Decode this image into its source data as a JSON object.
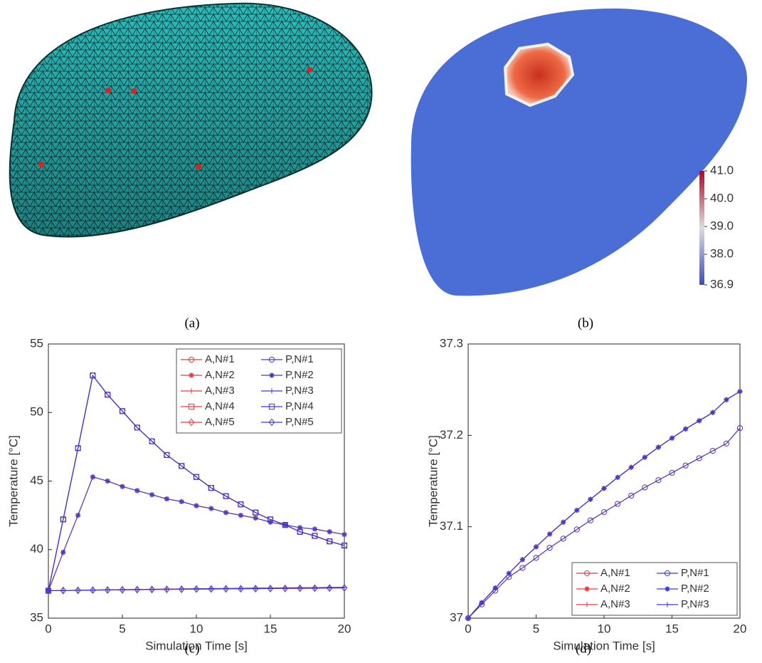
{
  "captions": [
    "(a)",
    "(b)",
    "(c)",
    "(d)"
  ],
  "colorbar": {
    "clim": [
      36.9,
      41.0
    ],
    "ticks": [
      {
        "value": 41.0,
        "label": "41.0"
      },
      {
        "value": 40.0,
        "label": "40.0"
      },
      {
        "value": 39.0,
        "label": "39.0"
      },
      {
        "value": 38.0,
        "label": "38.0"
      },
      {
        "value": 36.9,
        "label": "36.9"
      }
    ]
  },
  "chart_data": [
    {
      "type": "line",
      "xlabel": "Simulation Time [s]",
      "ylabel": "Temperature [°C]",
      "x": [
        0,
        1,
        2,
        3,
        4,
        5,
        6,
        7,
        8,
        9,
        10,
        11,
        12,
        13,
        14,
        15,
        16,
        17,
        18,
        19,
        20
      ],
      "xlim": [
        0,
        20
      ],
      "xticks": [
        0,
        5,
        10,
        15,
        20
      ],
      "ylim": [
        35,
        55
      ],
      "yticks": [
        35,
        40,
        45,
        50,
        55
      ],
      "grid": false,
      "legend": "upper right",
      "legend_columns": 2,
      "series": [
        {
          "name": "A,N#1",
          "color": "#e83a3a",
          "marker": "o",
          "values": [
            37.0,
            42.2,
            47.4,
            52.7,
            51.3,
            50.1,
            48.9,
            47.9,
            46.9,
            46.1,
            45.3,
            44.5,
            43.9,
            43.3,
            42.7,
            42.2,
            41.8,
            41.3,
            41.0,
            40.6,
            40.3
          ]
        },
        {
          "name": "A,N#2",
          "color": "#e83a3a",
          "marker": "*",
          "values": [
            37.0,
            39.8,
            42.5,
            45.3,
            45.0,
            44.6,
            44.3,
            44.0,
            43.7,
            43.5,
            43.2,
            43.0,
            42.7,
            42.5,
            42.3,
            42.0,
            41.8,
            41.6,
            41.5,
            41.3,
            41.1
          ]
        },
        {
          "name": "A,N#3",
          "color": "#e83a3a",
          "marker": "+",
          "values": [
            37.0,
            37.017,
            37.033,
            37.049,
            37.064,
            37.078,
            37.092,
            37.105,
            37.118,
            37.13,
            37.142,
            37.154,
            37.165,
            37.176,
            37.187,
            37.197,
            37.207,
            37.216,
            37.225,
            37.239,
            37.248
          ]
        },
        {
          "name": "A,N#4",
          "color": "#e83a3a",
          "marker": "s",
          "values": [
            37.0,
            42.2,
            47.4,
            52.7,
            51.3,
            50.1,
            48.9,
            47.9,
            46.9,
            46.1,
            45.3,
            44.5,
            43.9,
            43.3,
            42.7,
            42.2,
            41.8,
            41.3,
            41.0,
            40.6,
            40.3
          ]
        },
        {
          "name": "A,N#5",
          "color": "#e83a3a",
          "marker": "d",
          "values": [
            37.0,
            37.015,
            37.03,
            37.045,
            37.055,
            37.066,
            37.077,
            37.087,
            37.097,
            37.107,
            37.116,
            37.125,
            37.134,
            37.143,
            37.151,
            37.159,
            37.167,
            37.175,
            37.183,
            37.191,
            37.208
          ]
        },
        {
          "name": "P,N#1",
          "color": "#3a3ad8",
          "marker": "o",
          "values": [
            37.0,
            42.2,
            47.4,
            52.7,
            51.3,
            50.1,
            48.9,
            47.9,
            46.9,
            46.1,
            45.3,
            44.5,
            43.9,
            43.3,
            42.7,
            42.2,
            41.8,
            41.3,
            41.0,
            40.6,
            40.3
          ]
        },
        {
          "name": "P,N#2",
          "color": "#3a3ad8",
          "marker": "*",
          "values": [
            37.0,
            39.8,
            42.5,
            45.3,
            45.0,
            44.6,
            44.3,
            44.0,
            43.7,
            43.5,
            43.2,
            43.0,
            42.7,
            42.5,
            42.3,
            42.0,
            41.8,
            41.6,
            41.5,
            41.3,
            41.1
          ]
        },
        {
          "name": "P,N#3",
          "color": "#3a3ad8",
          "marker": "+",
          "values": [
            37.0,
            37.017,
            37.033,
            37.049,
            37.064,
            37.078,
            37.092,
            37.105,
            37.118,
            37.13,
            37.142,
            37.154,
            37.165,
            37.176,
            37.187,
            37.197,
            37.207,
            37.216,
            37.225,
            37.239,
            37.248
          ]
        },
        {
          "name": "P,N#4",
          "color": "#3a3ad8",
          "marker": "s",
          "values": [
            37.0,
            42.2,
            47.4,
            52.7,
            51.3,
            50.1,
            48.9,
            47.9,
            46.9,
            46.1,
            45.3,
            44.5,
            43.9,
            43.3,
            42.7,
            42.2,
            41.8,
            41.3,
            41.0,
            40.6,
            40.3
          ]
        },
        {
          "name": "P,N#5",
          "color": "#3a3ad8",
          "marker": "d",
          "values": [
            37.0,
            37.015,
            37.03,
            37.045,
            37.055,
            37.066,
            37.077,
            37.087,
            37.097,
            37.107,
            37.116,
            37.125,
            37.134,
            37.143,
            37.151,
            37.159,
            37.167,
            37.175,
            37.183,
            37.191,
            37.208
          ]
        }
      ]
    },
    {
      "type": "line",
      "xlabel": "Simulation Time [s]",
      "ylabel": "Temperature [°C]",
      "x": [
        0,
        1,
        2,
        3,
        4,
        5,
        6,
        7,
        8,
        9,
        10,
        11,
        12,
        13,
        14,
        15,
        16,
        17,
        18,
        19,
        20
      ],
      "xlim": [
        0,
        20
      ],
      "xticks": [
        0,
        5,
        10,
        15,
        20
      ],
      "ylim": [
        37,
        37.3
      ],
      "yticks": [
        37,
        37.1,
        37.2,
        37.3
      ],
      "grid": false,
      "legend": "lower right",
      "legend_columns": 2,
      "series": [
        {
          "name": "A,N#1",
          "color": "#e83a3a",
          "marker": "o",
          "values": [
            37.0,
            37.015,
            37.03,
            37.045,
            37.055,
            37.066,
            37.077,
            37.087,
            37.097,
            37.107,
            37.116,
            37.125,
            37.134,
            37.143,
            37.151,
            37.159,
            37.167,
            37.175,
            37.183,
            37.191,
            37.208
          ]
        },
        {
          "name": "A,N#2",
          "color": "#e83a3a",
          "marker": "*",
          "values": [
            37.0,
            37.017,
            37.033,
            37.049,
            37.064,
            37.078,
            37.092,
            37.105,
            37.118,
            37.13,
            37.142,
            37.154,
            37.165,
            37.176,
            37.187,
            37.197,
            37.207,
            37.216,
            37.225,
            37.239,
            37.248
          ]
        },
        {
          "name": "A,N#3",
          "color": "#e83a3a",
          "marker": "+",
          "values": [
            37.0,
            37.017,
            37.033,
            37.049,
            37.064,
            37.078,
            37.092,
            37.105,
            37.118,
            37.13,
            37.142,
            37.154,
            37.165,
            37.176,
            37.187,
            37.197,
            37.207,
            37.216,
            37.225,
            37.239,
            37.248
          ]
        },
        {
          "name": "P,N#1",
          "color": "#3a3ad8",
          "marker": "o",
          "values": [
            37.0,
            37.015,
            37.03,
            37.045,
            37.055,
            37.066,
            37.077,
            37.087,
            37.097,
            37.107,
            37.116,
            37.125,
            37.134,
            37.143,
            37.151,
            37.159,
            37.167,
            37.175,
            37.183,
            37.191,
            37.208
          ]
        },
        {
          "name": "P,N#2",
          "color": "#3a3ad8",
          "marker": "*",
          "values": [
            37.0,
            37.017,
            37.033,
            37.049,
            37.064,
            37.078,
            37.092,
            37.105,
            37.118,
            37.13,
            37.142,
            37.154,
            37.165,
            37.176,
            37.187,
            37.197,
            37.207,
            37.216,
            37.225,
            37.239,
            37.248
          ]
        },
        {
          "name": "P,N#3",
          "color": "#3a3ad8",
          "marker": "+",
          "values": [
            37.0,
            37.017,
            37.033,
            37.049,
            37.064,
            37.078,
            37.092,
            37.105,
            37.118,
            37.13,
            37.142,
            37.154,
            37.165,
            37.176,
            37.187,
            37.197,
            37.207,
            37.216,
            37.225,
            37.239,
            37.248
          ]
        }
      ]
    }
  ]
}
